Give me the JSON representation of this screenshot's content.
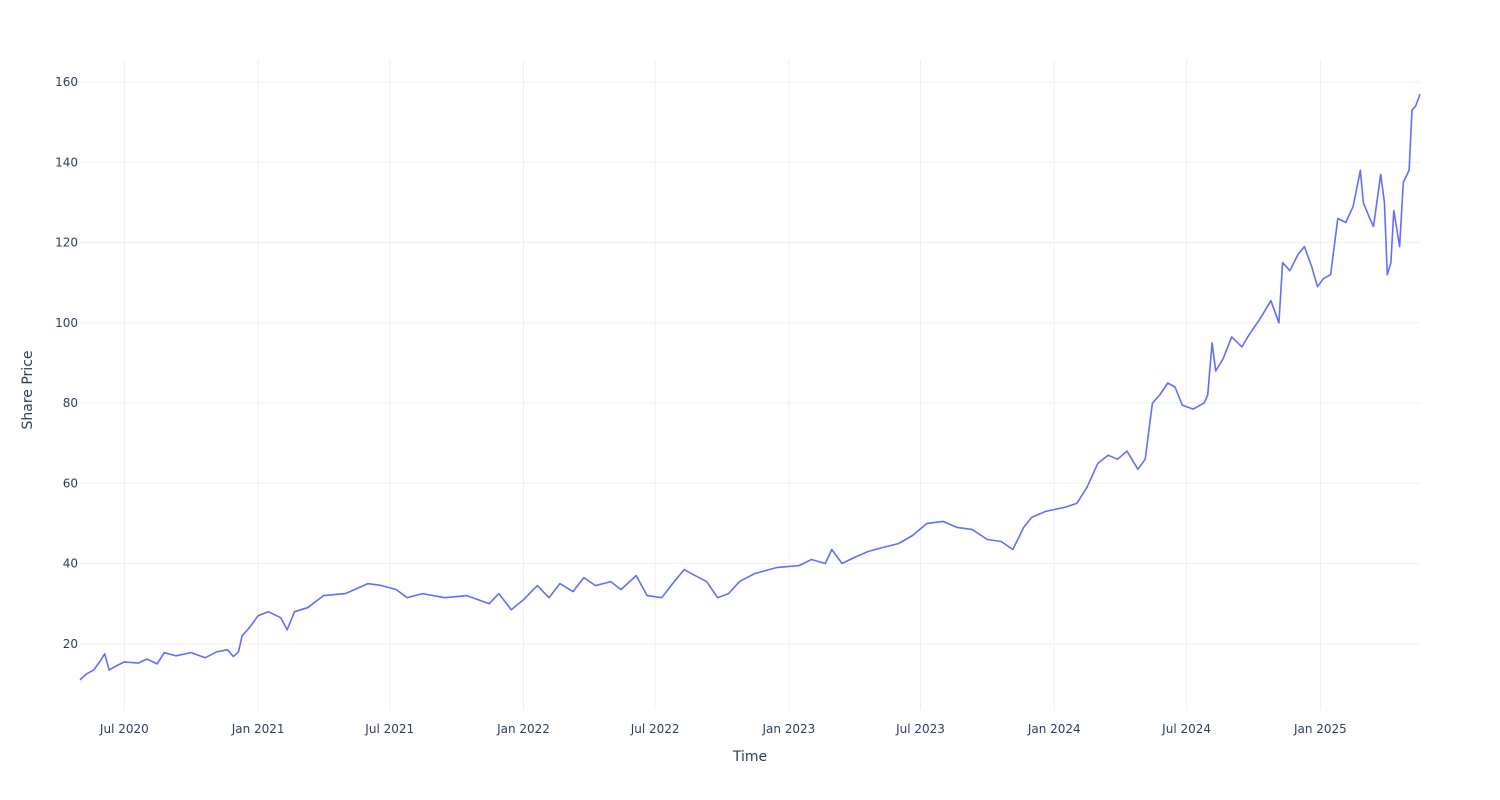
{
  "chart_data": {
    "type": "line",
    "xlabel": "Time",
    "ylabel": "Share Price",
    "x_range": [
      "2020-05-01",
      "2025-05-18"
    ],
    "ylim": [
      3.5,
      165.5
    ],
    "x_ticks": [
      {
        "date": "2020-07-01",
        "label": "Jul 2020"
      },
      {
        "date": "2021-01-01",
        "label": "Jan 2021"
      },
      {
        "date": "2021-07-01",
        "label": "Jul 2021"
      },
      {
        "date": "2022-01-01",
        "label": "Jan 2022"
      },
      {
        "date": "2022-07-01",
        "label": "Jul 2022"
      },
      {
        "date": "2023-01-01",
        "label": "Jan 2023"
      },
      {
        "date": "2023-07-01",
        "label": "Jul 2023"
      },
      {
        "date": "2024-01-01",
        "label": "Jan 2024"
      },
      {
        "date": "2024-07-01",
        "label": "Jul 2024"
      },
      {
        "date": "2025-01-01",
        "label": "Jan 2025"
      }
    ],
    "y_ticks": [
      20,
      40,
      60,
      80,
      100,
      120,
      140,
      160
    ],
    "grid": true,
    "line_color": "#636efa",
    "series": [
      {
        "points": [
          [
            "2020-05-01",
            11.0
          ],
          [
            "2020-05-10",
            12.5
          ],
          [
            "2020-05-20",
            13.5
          ],
          [
            "2020-05-28",
            15.5
          ],
          [
            "2020-06-04",
            17.5
          ],
          [
            "2020-06-10",
            13.5
          ],
          [
            "2020-06-20",
            14.5
          ],
          [
            "2020-07-01",
            15.5
          ],
          [
            "2020-07-20",
            15.2
          ],
          [
            "2020-08-01",
            16.2
          ],
          [
            "2020-08-15",
            15.0
          ],
          [
            "2020-08-25",
            17.8
          ],
          [
            "2020-09-10",
            17.0
          ],
          [
            "2020-10-01",
            17.8
          ],
          [
            "2020-10-20",
            16.5
          ],
          [
            "2020-11-05",
            18.0
          ],
          [
            "2020-11-20",
            18.5
          ],
          [
            "2020-11-28",
            16.8
          ],
          [
            "2020-12-05",
            18.0
          ],
          [
            "2020-12-10",
            22.0
          ],
          [
            "2020-12-20",
            24.0
          ],
          [
            "2021-01-01",
            27.0
          ],
          [
            "2021-01-15",
            28.0
          ],
          [
            "2021-02-01",
            26.5
          ],
          [
            "2021-02-10",
            23.5
          ],
          [
            "2021-02-20",
            28.0
          ],
          [
            "2021-03-10",
            29.0
          ],
          [
            "2021-04-01",
            32.0
          ],
          [
            "2021-05-01",
            32.5
          ],
          [
            "2021-06-01",
            35.0
          ],
          [
            "2021-06-20",
            34.5
          ],
          [
            "2021-07-10",
            33.5
          ],
          [
            "2021-07-25",
            31.5
          ],
          [
            "2021-08-15",
            32.5
          ],
          [
            "2021-09-15",
            31.5
          ],
          [
            "2021-10-15",
            32.0
          ],
          [
            "2021-11-15",
            30.0
          ],
          [
            "2021-11-28",
            32.5
          ],
          [
            "2021-12-15",
            28.5
          ],
          [
            "2022-01-01",
            31.0
          ],
          [
            "2022-01-20",
            34.5
          ],
          [
            "2022-02-05",
            31.5
          ],
          [
            "2022-02-20",
            35.0
          ],
          [
            "2022-03-10",
            33.0
          ],
          [
            "2022-03-25",
            36.5
          ],
          [
            "2022-04-10",
            34.5
          ],
          [
            "2022-05-01",
            35.5
          ],
          [
            "2022-05-15",
            33.5
          ],
          [
            "2022-06-05",
            37.0
          ],
          [
            "2022-06-20",
            32.0
          ],
          [
            "2022-07-10",
            31.5
          ],
          [
            "2022-07-25",
            35.0
          ],
          [
            "2022-08-10",
            38.5
          ],
          [
            "2022-08-25",
            37.0
          ],
          [
            "2022-09-10",
            35.5
          ],
          [
            "2022-09-25",
            31.5
          ],
          [
            "2022-10-10",
            32.5
          ],
          [
            "2022-10-25",
            35.5
          ],
          [
            "2022-11-15",
            37.5
          ],
          [
            "2022-12-15",
            39.0
          ],
          [
            "2023-01-15",
            39.5
          ],
          [
            "2023-02-01",
            41.0
          ],
          [
            "2023-02-20",
            40.0
          ],
          [
            "2023-03-01",
            43.5
          ],
          [
            "2023-03-15",
            40.0
          ],
          [
            "2023-04-01",
            41.5
          ],
          [
            "2023-04-20",
            43.0
          ],
          [
            "2023-05-10",
            44.0
          ],
          [
            "2023-06-01",
            45.0
          ],
          [
            "2023-06-20",
            47.0
          ],
          [
            "2023-07-10",
            50.0
          ],
          [
            "2023-08-01",
            50.5
          ],
          [
            "2023-08-20",
            49.0
          ],
          [
            "2023-09-10",
            48.5
          ],
          [
            "2023-10-01",
            46.0
          ],
          [
            "2023-10-20",
            45.5
          ],
          [
            "2023-11-05",
            43.5
          ],
          [
            "2023-11-20",
            49.0
          ],
          [
            "2023-12-01",
            51.5
          ],
          [
            "2023-12-20",
            53.0
          ],
          [
            "2024-01-15",
            54.0
          ],
          [
            "2024-02-01",
            55.0
          ],
          [
            "2024-02-15",
            59.0
          ],
          [
            "2024-03-01",
            65.0
          ],
          [
            "2024-03-15",
            67.0
          ],
          [
            "2024-03-28",
            66.0
          ],
          [
            "2024-04-10",
            68.0
          ],
          [
            "2024-04-25",
            63.5
          ],
          [
            "2024-05-05",
            66.0
          ],
          [
            "2024-05-15",
            80.0
          ],
          [
            "2024-05-25",
            82.0
          ],
          [
            "2024-06-05",
            85.0
          ],
          [
            "2024-06-15",
            84.0
          ],
          [
            "2024-06-25",
            79.5
          ],
          [
            "2024-07-10",
            78.5
          ],
          [
            "2024-07-25",
            80.0
          ],
          [
            "2024-07-30",
            82.0
          ],
          [
            "2024-08-05",
            95.0
          ],
          [
            "2024-08-10",
            88.0
          ],
          [
            "2024-08-20",
            91.0
          ],
          [
            "2024-09-01",
            96.5
          ],
          [
            "2024-09-15",
            94.0
          ],
          [
            "2024-09-25",
            97.0
          ],
          [
            "2024-10-10",
            101.0
          ],
          [
            "2024-10-25",
            105.5
          ],
          [
            "2024-11-05",
            100.0
          ],
          [
            "2024-11-10",
            115.0
          ],
          [
            "2024-11-20",
            113.0
          ],
          [
            "2024-12-01",
            117.0
          ],
          [
            "2024-12-10",
            119.0
          ],
          [
            "2024-12-20",
            114.0
          ],
          [
            "2024-12-28",
            109.0
          ],
          [
            "2025-01-05",
            111.0
          ],
          [
            "2025-01-15",
            112.0
          ],
          [
            "2025-01-25",
            126.0
          ],
          [
            "2025-02-05",
            125.0
          ],
          [
            "2025-02-15",
            129.0
          ],
          [
            "2025-02-25",
            138.0
          ],
          [
            "2025-03-01",
            130.0
          ],
          [
            "2025-03-10",
            126.0
          ],
          [
            "2025-03-15",
            124.0
          ],
          [
            "2025-03-25",
            137.0
          ],
          [
            "2025-03-30",
            130.0
          ],
          [
            "2025-04-03",
            112.0
          ],
          [
            "2025-04-08",
            115.0
          ],
          [
            "2025-04-12",
            128.0
          ],
          [
            "2025-04-20",
            119.0
          ],
          [
            "2025-04-25",
            135.0
          ],
          [
            "2025-05-03",
            138.0
          ],
          [
            "2025-05-07",
            153.0
          ],
          [
            "2025-05-12",
            154.0
          ],
          [
            "2025-05-18",
            157.0
          ]
        ]
      }
    ]
  }
}
